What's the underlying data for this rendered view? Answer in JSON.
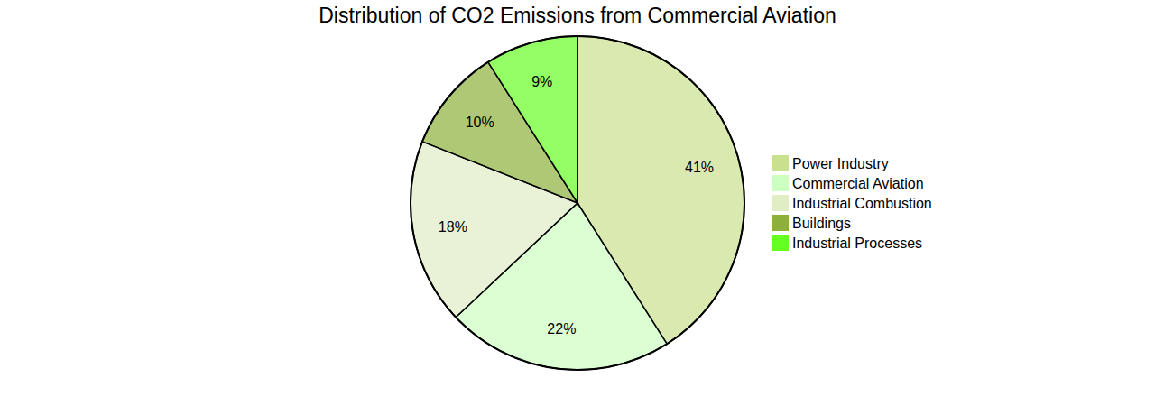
{
  "chart_data": {
    "type": "pie",
    "title": "Distribution of CO2 Emissions from Commercial Aviation",
    "categories": [
      "Power Industry",
      "Commercial Aviation",
      "Industrial Combustion",
      "Buildings",
      "Industrial Processes"
    ],
    "values": [
      41,
      22,
      18,
      10,
      9
    ],
    "value_labels": [
      "41%",
      "22%",
      "18%",
      "10%",
      "9%"
    ],
    "colors": [
      "#c9e08f",
      "#ccffc0",
      "#e0edc5",
      "#8db03a",
      "#66ff22"
    ],
    "data_labels": true,
    "legend": "right"
  }
}
